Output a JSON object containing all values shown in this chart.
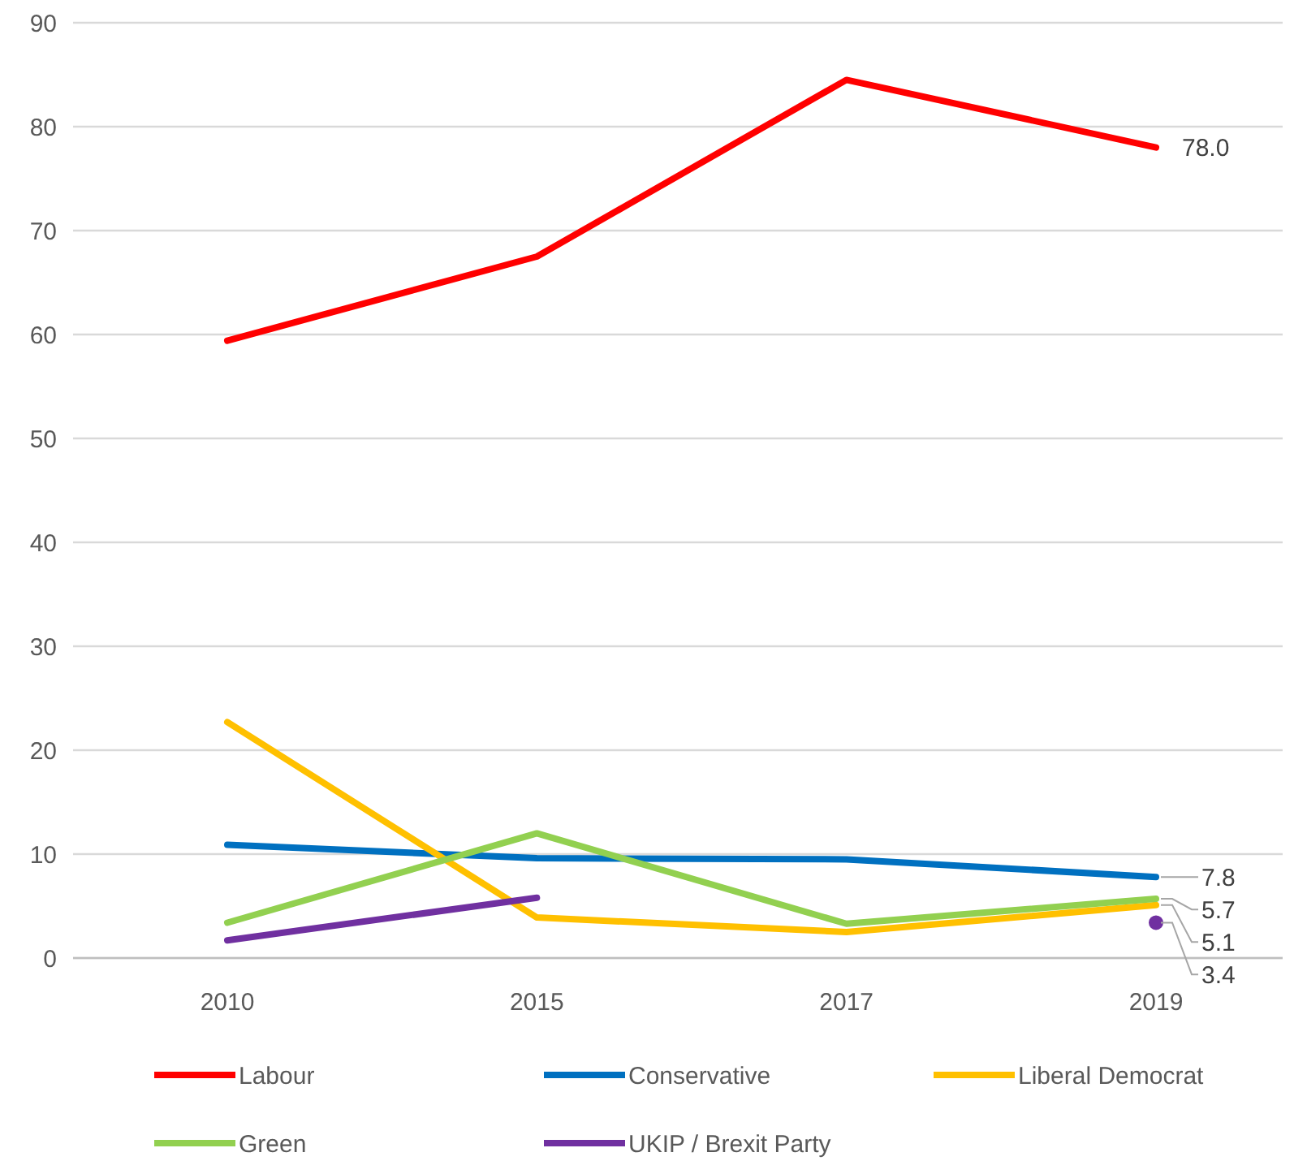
{
  "chart_data": {
    "type": "line",
    "categories": [
      "2010",
      "2015",
      "2017",
      "2019"
    ],
    "ylim": [
      0,
      90
    ],
    "yticks": [
      0,
      10,
      20,
      30,
      40,
      50,
      60,
      70,
      80,
      90
    ],
    "grid": "y",
    "legend": "bottom",
    "line_style": "solid",
    "series": [
      {
        "name": "Labour",
        "color": "#ff0000",
        "values": [
          59.4,
          67.5,
          84.5,
          78.0
        ],
        "value_labels": [
          null,
          null,
          null,
          "78.0"
        ]
      },
      {
        "name": "Conservative",
        "color": "#0070c0",
        "values": [
          10.9,
          9.6,
          9.5,
          7.8
        ],
        "value_labels": [
          null,
          null,
          null,
          "7.8"
        ]
      },
      {
        "name": "Liberal Democrat",
        "color": "#ffc000",
        "values": [
          22.7,
          3.9,
          2.5,
          5.1
        ],
        "value_labels": [
          null,
          null,
          null,
          "5.1"
        ]
      },
      {
        "name": "Green",
        "color": "#92d050",
        "values": [
          3.4,
          12.0,
          3.3,
          5.7
        ],
        "value_labels": [
          null,
          null,
          null,
          "5.7"
        ]
      },
      {
        "name": "UKIP / Brexit Party",
        "color": "#7030a0",
        "values": [
          1.7,
          5.8,
          null,
          3.4
        ],
        "value_labels": [
          null,
          null,
          null,
          "3.4"
        ]
      }
    ]
  }
}
